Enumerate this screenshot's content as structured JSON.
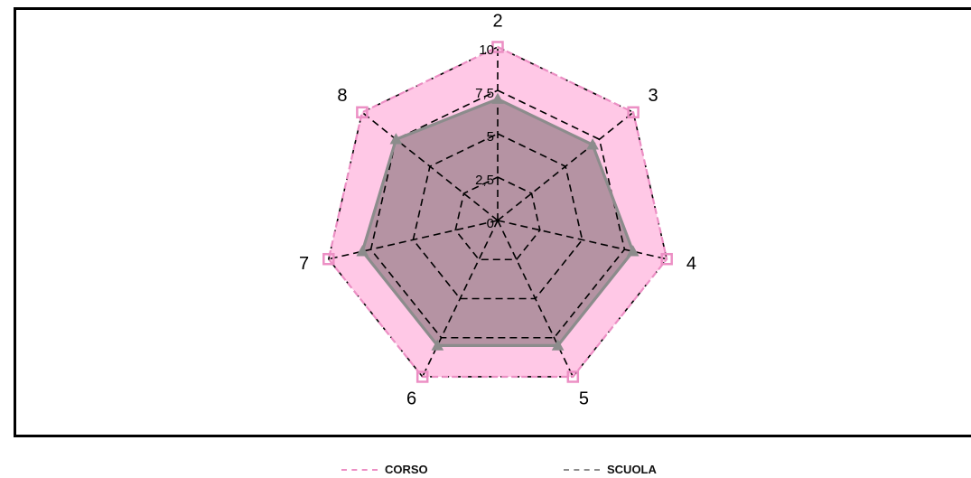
{
  "chart_data": {
    "type": "radar",
    "categories": [
      "2",
      "3",
      "4",
      "5",
      "6",
      "7",
      "8"
    ],
    "rmin": 0,
    "rmax": 10,
    "radial_ticks": [
      0,
      2.5,
      5,
      7.5,
      10
    ],
    "radial_tick_labels": [
      "0",
      "2,5",
      "5",
      "7,5",
      "10"
    ],
    "grid": true,
    "legend_position": "bottom",
    "series": [
      {
        "name": "CORSO",
        "values": [
          10,
          10,
          10,
          10,
          10,
          10,
          10
        ],
        "color": "#ec8fc4",
        "fill": "#ffc8e6",
        "marker": "square"
      },
      {
        "name": "SCUOLA",
        "values": [
          7,
          7,
          8,
          8,
          8,
          8,
          7.5
        ],
        "color": "#8c8c8c",
        "fill": "#a88a96",
        "marker": "triangle"
      }
    ]
  },
  "legend": {
    "corso_label": "CORSO",
    "scuola_label": "SCUOLA"
  }
}
